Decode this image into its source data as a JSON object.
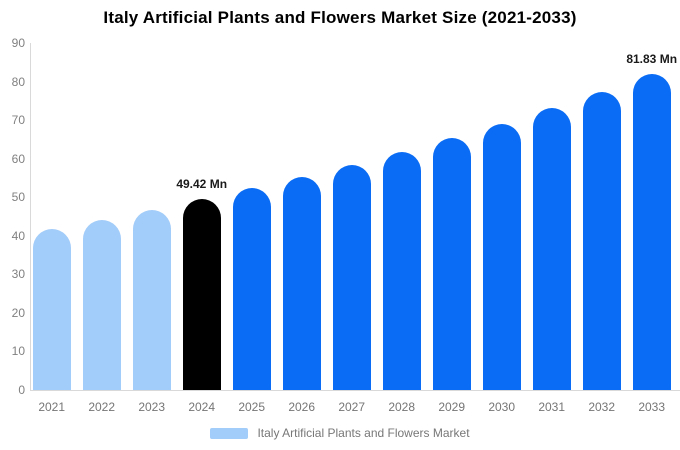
{
  "title": "Italy Artificial Plants and Flowers Market Size (2021-2033)",
  "legend": {
    "items": [
      {
        "label": "Italy Artificial Plants and Flowers Market",
        "color": "#a2ccf9"
      }
    ]
  },
  "chart_data": {
    "type": "bar",
    "title": "Italy Artificial Plants and Flowers Market Size (2021-2033)",
    "categories": [
      "2021",
      "2022",
      "2023",
      "2024",
      "2025",
      "2026",
      "2027",
      "2028",
      "2029",
      "2030",
      "2031",
      "2032",
      "2033"
    ],
    "values": [
      41.7,
      44.1,
      46.7,
      49.42,
      52.3,
      55.3,
      58.4,
      61.8,
      65.4,
      69.1,
      73.1,
      77.3,
      81.83
    ],
    "unit": "Mn",
    "bar_colors": [
      "#a2ccf9",
      "#a2ccf9",
      "#a2ccf9",
      "#000000",
      "#0a6cf5",
      "#0a6cf5",
      "#0a6cf5",
      "#0a6cf5",
      "#0a6cf5",
      "#0a6cf5",
      "#0a6cf5",
      "#0a6cf5",
      "#0a6cf5"
    ],
    "annotations": [
      {
        "category": "2024",
        "text": "49.42 Mn"
      },
      {
        "category": "2033",
        "text": "81.83 Mn"
      }
    ],
    "xlabel": "",
    "ylabel": "",
    "ylim": [
      0,
      90
    ],
    "yticks": [
      0,
      10,
      20,
      30,
      40,
      50,
      60,
      70,
      80,
      90
    ],
    "grid": false,
    "legend_position": "bottom",
    "colors": {
      "historical_bar": "#a2ccf9",
      "base_year_bar": "#000000",
      "forecast_bar": "#0a6cf5",
      "axis_line": "#d9d9d9",
      "tick_text": "#808080"
    }
  }
}
